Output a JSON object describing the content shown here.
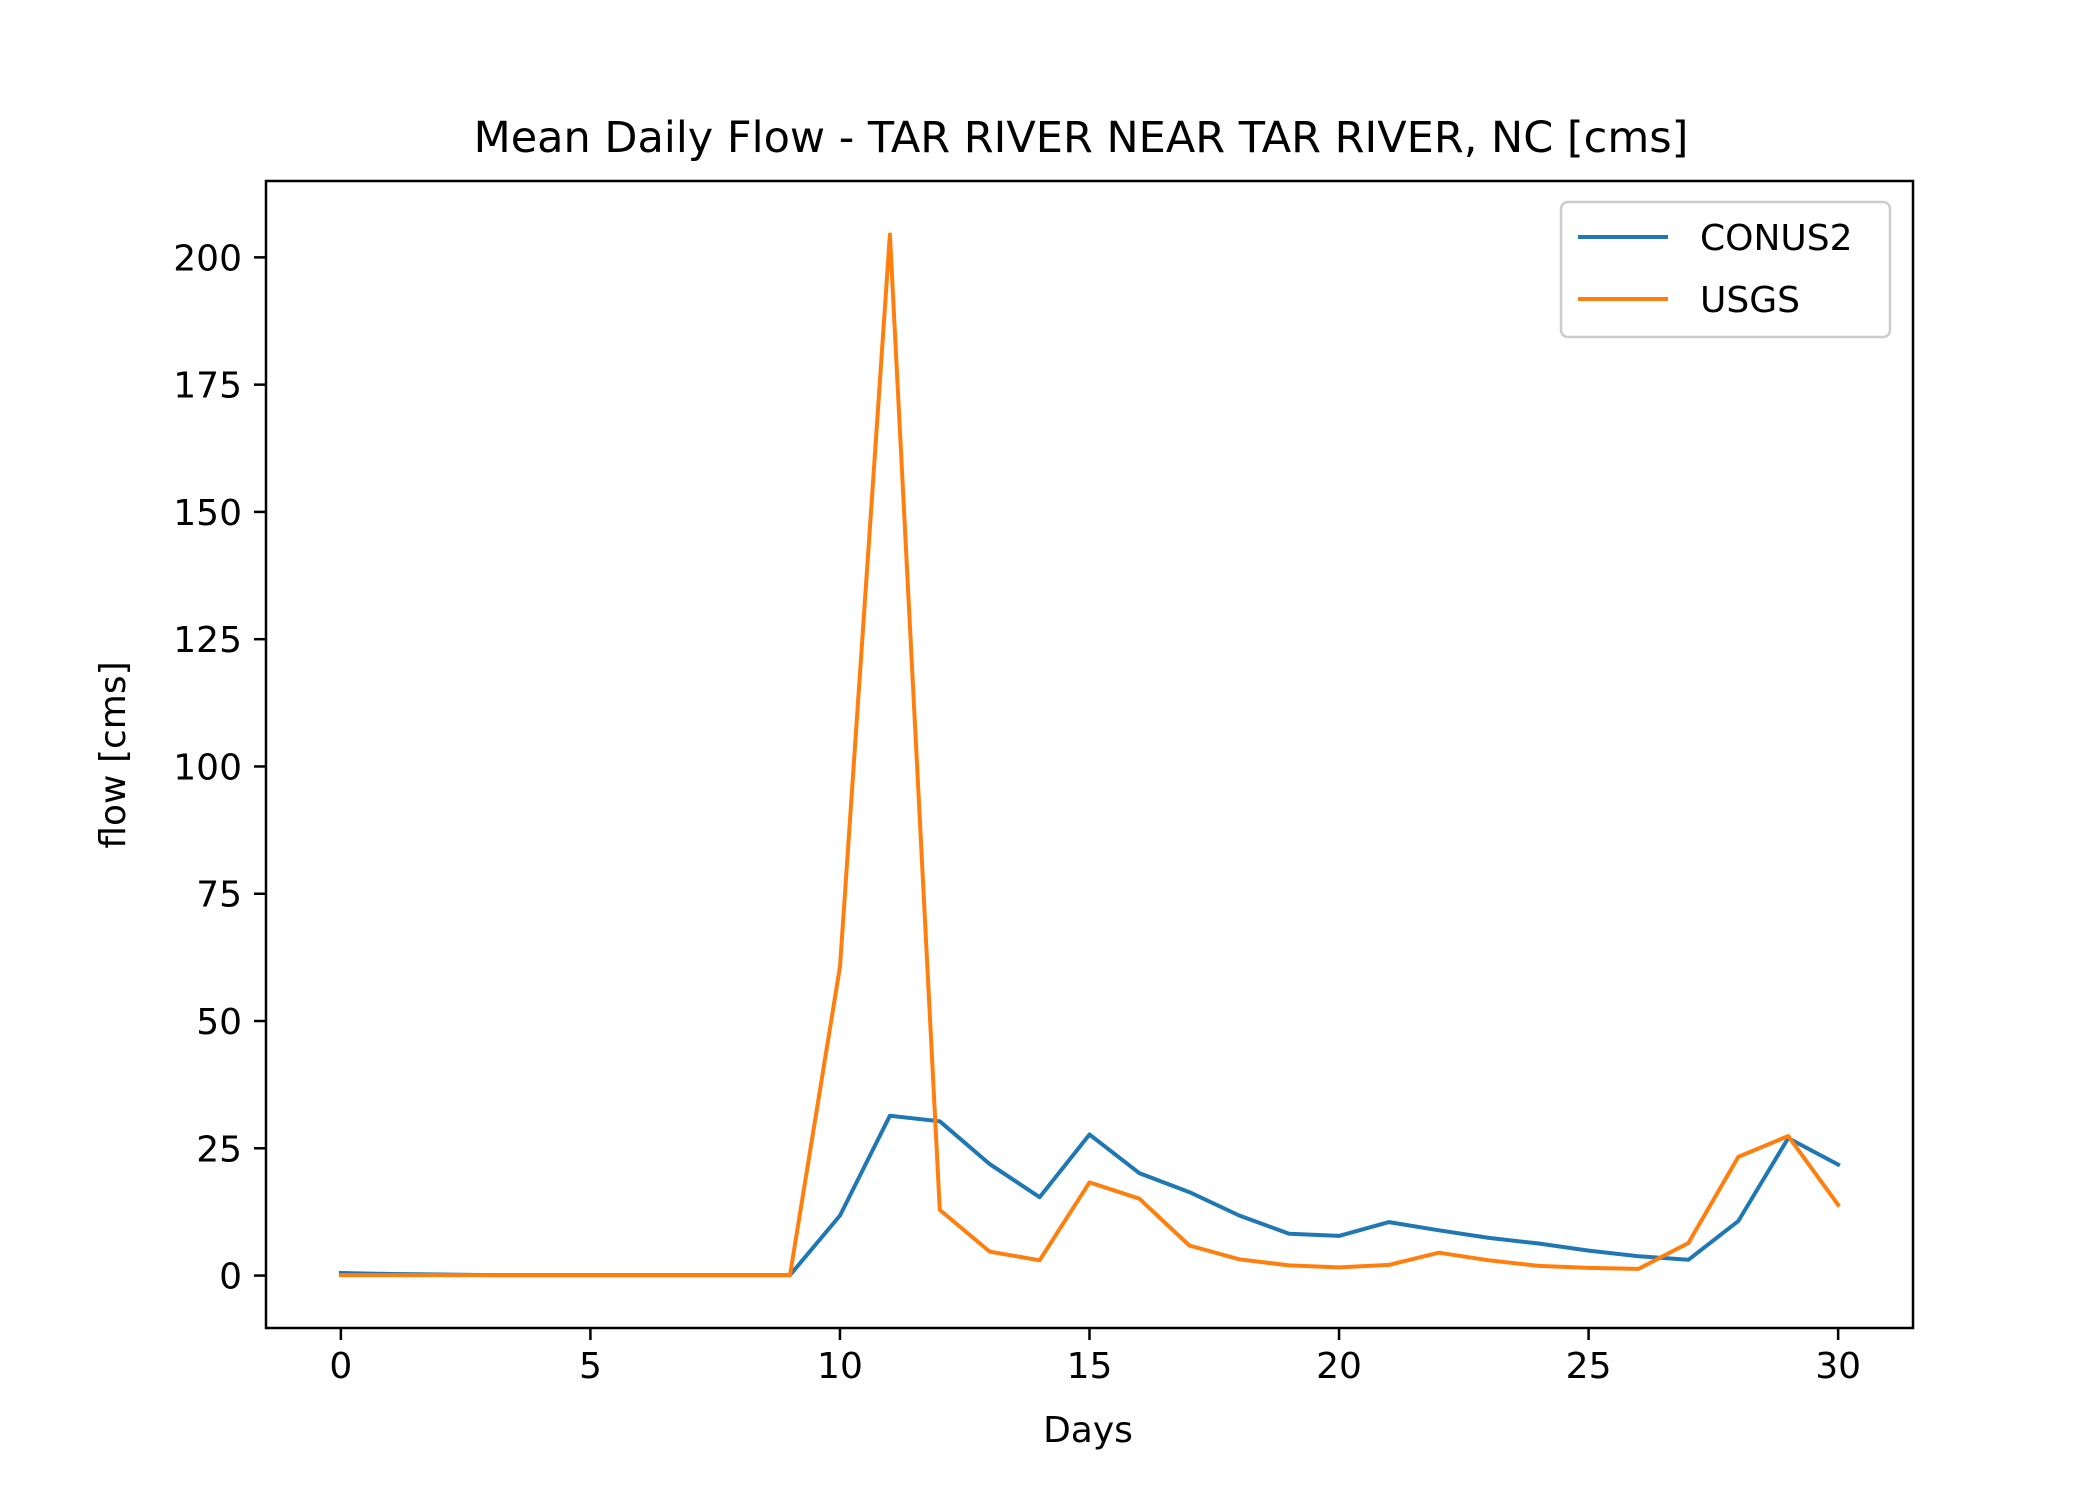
{
  "chart_data": {
    "type": "line",
    "title": "Mean Daily Flow - TAR RIVER NEAR TAR RIVER, NC [cms]",
    "xlabel": "Days",
    "ylabel": "flow [cms]",
    "xlim": [
      -1.5,
      31.5
    ],
    "ylim": [
      -10.3,
      215
    ],
    "xticks": [
      0,
      5,
      10,
      15,
      20,
      25,
      30
    ],
    "yticks": [
      0,
      25,
      50,
      75,
      100,
      125,
      150,
      175,
      200
    ],
    "grid": false,
    "legend_position": "upper right",
    "x": [
      0,
      1,
      2,
      3,
      4,
      5,
      6,
      7,
      8,
      9,
      10,
      11,
      12,
      13,
      14,
      15,
      16,
      17,
      18,
      19,
      20,
      21,
      22,
      23,
      24,
      25,
      26,
      27,
      28,
      29,
      30
    ],
    "series": [
      {
        "name": "CONUS2",
        "color": "#1f77b4",
        "values": [
          0.5,
          0.3,
          0.2,
          0.1,
          0.1,
          0.1,
          0.1,
          0.1,
          0.1,
          0.1,
          11.8,
          31.4,
          30.3,
          21.9,
          15.4,
          27.7,
          20.1,
          16.4,
          11.8,
          8.2,
          7.8,
          10.5,
          8.9,
          7.4,
          6.3,
          4.9,
          3.8,
          3.1,
          10.7,
          27.0,
          21.8
        ]
      },
      {
        "name": "USGS",
        "color": "#ff7f0e",
        "values": [
          0.1,
          0.1,
          0.1,
          0.1,
          0.1,
          0.1,
          0.1,
          0.1,
          0.1,
          0.1,
          60.7,
          204.5,
          12.9,
          4.7,
          3.0,
          18.3,
          15.1,
          5.9,
          3.2,
          2.0,
          1.6,
          2.1,
          4.5,
          3.0,
          1.9,
          1.5,
          1.3,
          6.4,
          23.3,
          27.4,
          13.9
        ]
      }
    ]
  }
}
